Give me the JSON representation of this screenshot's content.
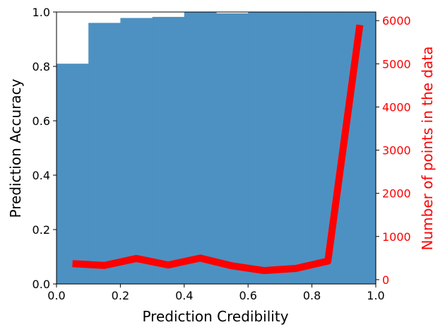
{
  "chart_data": {
    "type": "bar",
    "xlabel": "Prediction Credibility",
    "ylabel": "Prediction Accuracy",
    "y2label": "Number of points in the data",
    "xlim": [
      0,
      1
    ],
    "ylim": [
      0,
      1
    ],
    "y2lim": [
      -100,
      6200
    ],
    "x_ticks": [
      0.0,
      0.2,
      0.4,
      0.6,
      0.8,
      1.0
    ],
    "x_tick_labels": [
      "0.0",
      "0.2",
      "0.4",
      "0.6",
      "0.8",
      "1.0"
    ],
    "y_ticks": [
      0.0,
      0.2,
      0.4,
      0.6,
      0.8,
      1.0
    ],
    "y_tick_labels": [
      "0.0",
      "0.2",
      "0.4",
      "0.6",
      "0.8",
      "1.0"
    ],
    "y2_ticks": [
      0,
      1000,
      2000,
      3000,
      4000,
      5000,
      6000
    ],
    "y2_tick_labels": [
      "0",
      "1000",
      "2000",
      "3000",
      "4000",
      "5000",
      "6000"
    ],
    "bars": {
      "bin_edges": [
        0.0,
        0.1,
        0.2,
        0.3,
        0.4,
        0.5,
        0.6,
        0.7,
        0.8,
        0.9,
        1.0
      ],
      "values": [
        0.81,
        0.96,
        0.978,
        0.982,
        1.0,
        0.995,
        1.0,
        1.0,
        1.0,
        1.0
      ],
      "color": "#4d91c2"
    },
    "line": {
      "x": [
        0.05,
        0.15,
        0.25,
        0.35,
        0.45,
        0.55,
        0.65,
        0.75,
        0.85,
        0.95
      ],
      "y": [
        370,
        330,
        490,
        340,
        500,
        320,
        210,
        260,
        430,
        5900
      ],
      "color": "#ff0000"
    },
    "grid": false,
    "legend": "none",
    "axis_color_right": "#ff0000"
  }
}
